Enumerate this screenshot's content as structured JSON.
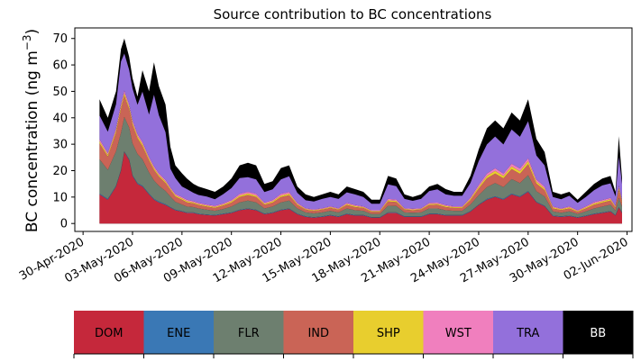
{
  "chart_data": {
    "type": "area",
    "stacked": true,
    "title": "Source contribution to BC concentrations",
    "ylabel": "BC concentration (ng m⁻³)",
    "ylabel_main": "BC concentration (ng m",
    "ylabel_sup": "−3",
    "ylabel_close": ")",
    "xlabel": "",
    "ylim": [
      -3,
      74
    ],
    "yticks": [
      0,
      10,
      20,
      30,
      40,
      50,
      60,
      70
    ],
    "xlim": [
      -0.5,
      33.3
    ],
    "xticks": [
      0,
      3,
      6,
      9,
      12,
      15,
      18,
      21,
      24,
      27,
      30,
      33
    ],
    "xtick_labels": [
      "30-Apr-2020",
      "03-May-2020",
      "06-May-2020",
      "09-May-2020",
      "12-May-2020",
      "15-May-2020",
      "18-May-2020",
      "21-May-2020",
      "24-May-2020",
      "27-May-2020",
      "30-May-2020",
      "02-Jun-2020"
    ],
    "x_days": [
      1.0,
      1.5,
      2.0,
      2.3,
      2.5,
      2.8,
      3.0,
      3.3,
      3.6,
      4.0,
      4.3,
      4.6,
      5.0,
      5.3,
      5.6,
      6.0,
      6.3,
      6.7,
      7.0,
      7.5,
      8.0,
      8.5,
      9.0,
      9.5,
      10.0,
      10.5,
      11.0,
      11.5,
      12.0,
      12.5,
      13.0,
      13.5,
      14.0,
      14.5,
      15.0,
      15.5,
      16.0,
      16.5,
      17.0,
      17.5,
      18.0,
      18.5,
      19.0,
      19.5,
      20.0,
      20.5,
      21.0,
      21.5,
      22.0,
      22.5,
      23.0,
      23.5,
      24.0,
      24.5,
      25.0,
      25.5,
      26.0,
      26.5,
      27.0,
      27.5,
      28.0,
      28.5,
      29.0,
      29.5,
      30.0,
      30.5,
      31.0,
      31.5,
      32.0,
      32.3,
      32.5,
      32.7
    ],
    "total": [
      47,
      40,
      50,
      66,
      70,
      63,
      55,
      48,
      58,
      50,
      61,
      52,
      45,
      29,
      22,
      19,
      17,
      15,
      14,
      13,
      12,
      14,
      17,
      22,
      23,
      22,
      15,
      16,
      21,
      22,
      14,
      11,
      10,
      11,
      12,
      11,
      14,
      13,
      12,
      9,
      9,
      18,
      17,
      11,
      10,
      11,
      14,
      15,
      13,
      12,
      12,
      18,
      28,
      36,
      39,
      36,
      42,
      39,
      47,
      32,
      27,
      12,
      11,
      12,
      9,
      12,
      15,
      17,
      18,
      12,
      33,
      17
    ],
    "series": [
      {
        "name": "DOM",
        "color": "#c5283b",
        "values": [
          11,
          9,
          14,
          20,
          27,
          24,
          18,
          15,
          14,
          11,
          9,
          8,
          7,
          6,
          5,
          4.5,
          4,
          4,
          3.5,
          3.2,
          3,
          3.5,
          4,
          5,
          5.5,
          5,
          3.5,
          4,
          5,
          5.5,
          3.5,
          2.5,
          2.2,
          2.5,
          3,
          2.5,
          3.5,
          3,
          3,
          2.2,
          2.2,
          4,
          4,
          2.5,
          2.5,
          2.5,
          3.5,
          3.5,
          3,
          3,
          3,
          4.5,
          7,
          9,
          10,
          9,
          11,
          10,
          12,
          8,
          6.5,
          2.8,
          2.5,
          2.8,
          2.2,
          2.8,
          3.5,
          4,
          4.5,
          3,
          6,
          4
        ]
      },
      {
        "name": "ENE",
        "color": "#3a78b5",
        "values": [
          0.3,
          0.3,
          0.3,
          0.3,
          0.3,
          0.3,
          0.3,
          0.3,
          0.3,
          0.3,
          0.3,
          0.3,
          0.3,
          0.2,
          0.2,
          0.2,
          0.2,
          0.2,
          0.2,
          0.2,
          0.2,
          0.2,
          0.2,
          0.2,
          0.2,
          0.2,
          0.2,
          0.2,
          0.2,
          0.2,
          0.2,
          0.2,
          0.2,
          0.2,
          0.2,
          0.2,
          0.2,
          0.2,
          0.2,
          0.2,
          0.2,
          0.2,
          0.2,
          0.2,
          0.2,
          0.2,
          0.2,
          0.2,
          0.2,
          0.2,
          0.2,
          0.2,
          0.2,
          0.3,
          0.3,
          0.3,
          0.3,
          0.3,
          0.3,
          0.2,
          0.2,
          0.2,
          0.2,
          0.2,
          0.2,
          0.2,
          0.2,
          0.2,
          0.2,
          0.2,
          0.2,
          0.2
        ]
      },
      {
        "name": "FLR",
        "color": "#6d7f6f",
        "values": [
          13,
          11,
          13,
          14,
          13,
          12,
          12,
          11,
          10,
          8,
          7,
          6,
          5,
          4,
          3,
          2.5,
          2.2,
          2,
          2,
          1.8,
          1.6,
          1.8,
          2.2,
          2.8,
          3,
          2.8,
          2,
          2.2,
          2.8,
          3,
          2,
          1.5,
          1.4,
          1.5,
          1.6,
          1.5,
          2,
          1.8,
          1.6,
          1.2,
          1.2,
          2.5,
          2.4,
          1.5,
          1.4,
          1.5,
          2,
          2,
          1.8,
          1.6,
          1.6,
          2.5,
          3.5,
          4.5,
          5,
          4.5,
          5.5,
          5,
          6,
          4,
          3.5,
          1.6,
          1.4,
          1.6,
          1.2,
          1.6,
          2,
          2.2,
          2.4,
          1.6,
          3.5,
          2.2
        ]
      },
      {
        "name": "IND",
        "color": "#ca6456",
        "values": [
          6,
          5,
          7,
          9,
          8,
          7,
          7,
          6,
          5,
          4.5,
          4,
          3.5,
          3,
          2.5,
          2,
          1.8,
          1.6,
          1.4,
          1.3,
          1.2,
          1.1,
          1.3,
          1.5,
          2,
          2.1,
          2,
          1.4,
          1.5,
          2,
          2,
          1.3,
          1,
          0.9,
          1,
          1.1,
          1,
          1.3,
          1.2,
          1.1,
          0.8,
          0.8,
          1.6,
          1.5,
          1,
          0.9,
          1,
          1.3,
          1.4,
          1.2,
          1.1,
          1.1,
          1.6,
          2.5,
          3.3,
          3.6,
          3.3,
          3.8,
          3.5,
          4.2,
          2.9,
          2.4,
          1.1,
          1,
          1.1,
          0.8,
          1.1,
          1.4,
          1.5,
          1.6,
          1.1,
          3,
          1.5
        ]
      },
      {
        "name": "SHP",
        "color": "#e8ce2e",
        "values": [
          0.8,
          0.7,
          0.9,
          1,
          1,
          0.9,
          0.9,
          0.8,
          0.8,
          0.7,
          0.7,
          0.6,
          0.6,
          0.5,
          0.5,
          0.5,
          0.5,
          0.4,
          0.4,
          0.4,
          0.4,
          0.4,
          0.5,
          0.6,
          0.6,
          0.6,
          0.4,
          0.5,
          0.6,
          0.6,
          0.4,
          0.3,
          0.3,
          0.3,
          0.3,
          0.3,
          0.4,
          0.4,
          0.3,
          0.3,
          0.3,
          0.5,
          0.5,
          0.3,
          0.3,
          0.3,
          0.4,
          0.4,
          0.4,
          0.3,
          0.3,
          0.5,
          0.7,
          0.9,
          1,
          0.9,
          1,
          1,
          1.1,
          0.8,
          0.7,
          0.4,
          0.3,
          0.4,
          0.3,
          0.4,
          0.5,
          0.5,
          0.5,
          0.4,
          0.8,
          0.5
        ]
      },
      {
        "name": "WST",
        "color": "#f07fbe",
        "values": [
          0.8,
          0.7,
          0.9,
          1,
          1,
          0.9,
          0.9,
          0.8,
          0.8,
          0.7,
          0.7,
          0.6,
          0.6,
          0.5,
          0.5,
          0.5,
          0.5,
          0.4,
          0.4,
          0.4,
          0.4,
          0.4,
          0.5,
          0.6,
          0.6,
          0.6,
          0.4,
          0.5,
          0.6,
          0.6,
          0.4,
          0.3,
          0.3,
          0.3,
          0.3,
          0.3,
          0.4,
          0.4,
          0.3,
          0.3,
          0.3,
          0.5,
          0.5,
          0.3,
          0.3,
          0.3,
          0.4,
          0.4,
          0.4,
          0.3,
          0.3,
          0.5,
          0.7,
          0.9,
          1,
          0.9,
          1,
          1,
          1.1,
          0.8,
          0.7,
          0.4,
          0.3,
          0.4,
          0.3,
          0.4,
          0.5,
          0.5,
          0.5,
          0.4,
          0.8,
          0.5
        ]
      },
      {
        "name": "TRA",
        "color": "#9370db",
        "values": [
          9,
          8,
          9,
          16,
          14,
          13,
          12,
          11,
          19,
          16,
          27,
          22,
          18,
          7,
          6,
          4,
          4,
          3.2,
          3,
          3,
          2.5,
          3.5,
          4.5,
          6,
          5.5,
          5.5,
          4,
          4,
          5.5,
          6,
          3.8,
          3,
          3,
          3.5,
          3.5,
          3.5,
          4,
          4,
          3.5,
          2.5,
          2.5,
          5.5,
          5,
          3.5,
          3,
          3.5,
          4.5,
          5,
          4,
          4,
          4,
          5.5,
          9,
          11,
          12,
          11,
          13,
          12,
          14,
          9,
          8,
          3.5,
          3.5,
          4,
          2.8,
          3.5,
          4.5,
          5.5,
          5.5,
          3.5,
          11,
          6
        ]
      },
      {
        "name": "BB",
        "color": "#000000",
        "values": []
      }
    ]
  },
  "legend": {
    "items": [
      {
        "name": "DOM",
        "color": "#c5283b",
        "text_color": "#000000"
      },
      {
        "name": "ENE",
        "color": "#3a78b5",
        "text_color": "#000000"
      },
      {
        "name": "FLR",
        "color": "#6d7f6f",
        "text_color": "#000000"
      },
      {
        "name": "IND",
        "color": "#ca6456",
        "text_color": "#000000"
      },
      {
        "name": "SHP",
        "color": "#e8ce2e",
        "text_color": "#000000"
      },
      {
        "name": "WST",
        "color": "#f07fbe",
        "text_color": "#000000"
      },
      {
        "name": "TRA",
        "color": "#9370db",
        "text_color": "#000000"
      },
      {
        "name": "BB",
        "color": "#000000",
        "text_color": "#ffffff"
      }
    ]
  }
}
